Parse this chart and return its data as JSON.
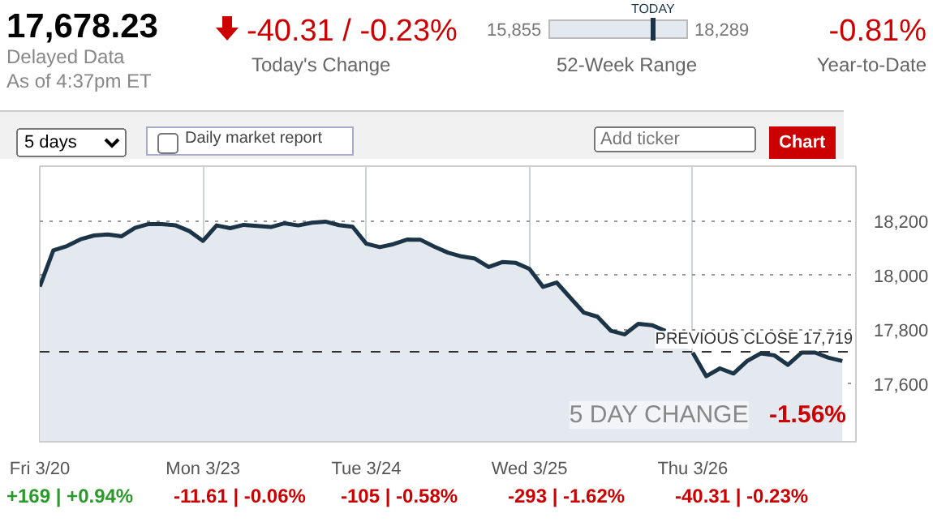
{
  "chart_data": {
    "type": "area",
    "title": "17,678.23",
    "subtitle": "Delayed Data\nAs of 4:37pm ET",
    "annotations": [
      "-40.31 / -0.23%",
      "Today's Change",
      "15,855",
      "TODAY",
      "18,289",
      "52-Week Range",
      "-0.81%",
      "Year-to-Date",
      "5 days",
      "Daily market report",
      "Add ticker",
      "Chart",
      "5 DAY CHANGE",
      "-1.56%",
      "+169 | +0.94%",
      "-11.61 | -0.06%",
      "-105 | -0.58%",
      "-293 | -1.62%",
      "-40.31 | -0.23%"
    ],
    "categories": [
      "Fri 3/20",
      null,
      null,
      null,
      null,
      null,
      null,
      null,
      null,
      null,
      null,
      null,
      "Mon 3/23",
      null,
      null,
      null,
      null,
      null,
      null,
      null,
      null,
      null,
      null,
      null,
      "Tue 3/24",
      null,
      null,
      null,
      null,
      null,
      null,
      null,
      null,
      null,
      null,
      null,
      "Wed 3/25",
      null,
      null,
      null,
      null,
      null,
      null,
      null,
      null,
      null,
      null,
      null,
      "Thu 3/26",
      null,
      null,
      null,
      null,
      null,
      null,
      null,
      null,
      null,
      null,
      null
    ],
    "series": [
      {
        "color": "#1b3447",
        "values": [
          17959,
          18092,
          18108,
          18133,
          18147,
          18151,
          18144,
          18175,
          18189,
          18189,
          18184,
          18163,
          18127,
          18184,
          18174,
          18186,
          18182,
          18178,
          18192,
          18184,
          18194,
          18198,
          18185,
          18179,
          18117,
          18104,
          18115,
          18132,
          18131,
          18106,
          18084,
          18070,
          18062,
          18031,
          18049,
          18046,
          18024,
          17958,
          17974,
          17918,
          17863,
          17848,
          17796,
          17783,
          17822,
          17817,
          17796,
          null,
          17716,
          17629,
          17658,
          17639,
          17685,
          17713,
          17706,
          17671,
          17716,
          17716,
          17697,
          17685
        ]
      }
    ],
    "ylim": [
      17388,
      18402
    ],
    "yticks": [
      {
        "value": 17600,
        "label": "17,600"
      },
      {
        "value": 17800,
        "label": "17,800"
      },
      {
        "value": 18000,
        "label": "18,000"
      },
      {
        "value": 18200,
        "label": "18,200"
      }
    ],
    "ref_lines": [
      {
        "axis": "y",
        "value": 17719,
        "label": "PREVIOUS CLOSE 17,719",
        "line_style": "dashed",
        "color": "#333333"
      }
    ],
    "grid": true
  }
}
